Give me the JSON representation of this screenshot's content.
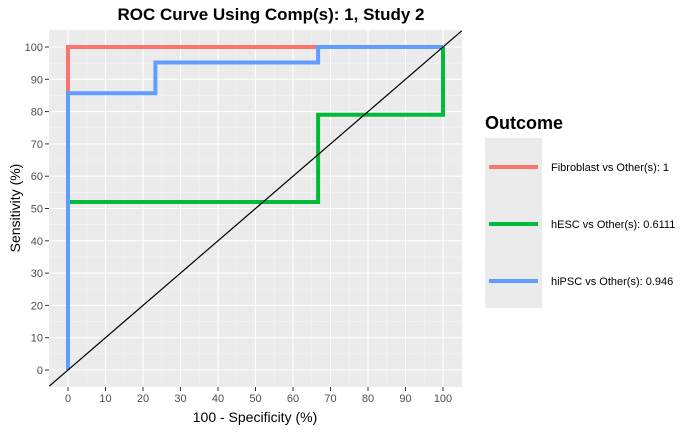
{
  "chart_data": {
    "type": "line",
    "title": "ROC Curve Using Comp(s): 1, Study 2",
    "xlabel": "100 - Specificity (%)",
    "ylabel": "Sensitivity (%)",
    "xlim": [
      0,
      100
    ],
    "ylim": [
      0,
      100
    ],
    "x_ticks": [
      0,
      10,
      20,
      30,
      40,
      50,
      60,
      70,
      80,
      90,
      100
    ],
    "y_ticks": [
      0,
      10,
      20,
      30,
      40,
      50,
      60,
      70,
      80,
      90,
      100
    ],
    "grid": true,
    "legend": {
      "title": "Outcome",
      "placement": "right"
    },
    "reference_line": {
      "x": [
        0,
        100
      ],
      "y": [
        0,
        100
      ],
      "color": "#000000"
    },
    "series": [
      {
        "name": "Fibroblast vs Other(s): 1",
        "color": "#F8766D",
        "x": [
          0,
          0,
          0,
          66.7,
          66.7,
          100
        ],
        "y": [
          0,
          85.7,
          100,
          100,
          100,
          100
        ]
      },
      {
        "name": "hESC vs Other(s): 0.6111",
        "color": "#00BA38",
        "x": [
          0,
          0,
          66.7,
          66.7,
          100,
          100
        ],
        "y": [
          0,
          52,
          52,
          79,
          79,
          100
        ]
      },
      {
        "name": "hiPSC vs Other(s): 0.946",
        "color": "#619CFF",
        "x": [
          0,
          0,
          23.3,
          23.3,
          66.7,
          66.7,
          100
        ],
        "y": [
          0,
          85.7,
          85.7,
          95.2,
          95.2,
          100,
          100
        ]
      }
    ]
  }
}
